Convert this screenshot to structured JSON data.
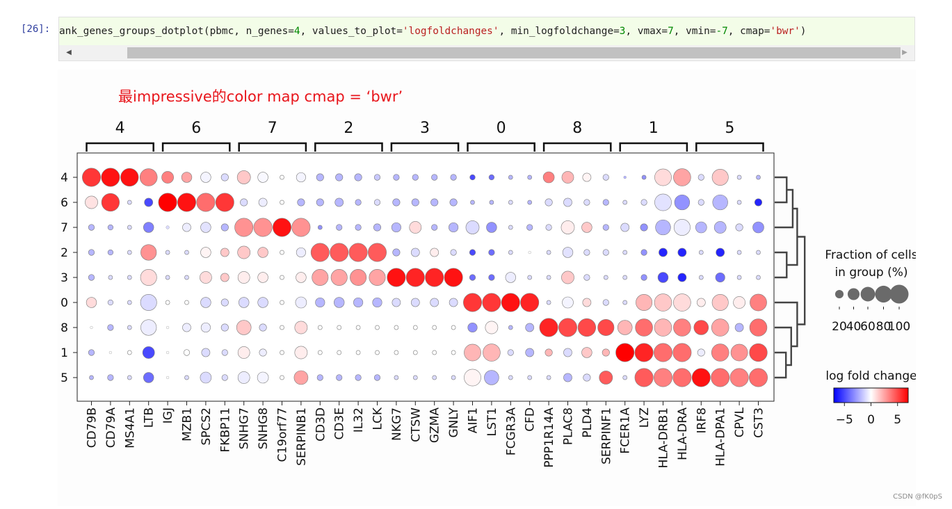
{
  "cell": {
    "prompt": "[26]:",
    "code_parts": [
      {
        "t": "ank_genes_groups_dotplot(pbmc, n_genes=",
        "c": ""
      },
      {
        "t": "4",
        "c": "n"
      },
      {
        "t": ", values_to_plot=",
        "c": ""
      },
      {
        "t": "'logfoldchanges'",
        "c": "s"
      },
      {
        "t": ", min_logfoldchange=",
        "c": ""
      },
      {
        "t": "3",
        "c": "n"
      },
      {
        "t": ", vmax=",
        "c": ""
      },
      {
        "t": "7",
        "c": "n"
      },
      {
        "t": ", vmin=",
        "c": ""
      },
      {
        "t": "-7",
        "c": "n"
      },
      {
        "t": ", cmap=",
        "c": ""
      },
      {
        "t": "'bwr'",
        "c": "s"
      },
      {
        "t": ")",
        "c": ""
      }
    ],
    "scroll_left": "◀",
    "scroll_right": "▶"
  },
  "annotation": "最impressive的color map  cmap = ‘bwr’",
  "watermark": "CSDN @fK0pS",
  "colors": {
    "blue": "#0000ff",
    "white": "#ffffff",
    "red": "#ff0000",
    "annotation": "#e8151b"
  },
  "chart_data": {
    "type": "dotplot",
    "title": "",
    "groups": [
      {
        "label": "4",
        "genes": [
          "CD79B",
          "CD79A",
          "MS4A1",
          "LTB"
        ]
      },
      {
        "label": "6",
        "genes": [
          "IGJ",
          "MZB1",
          "SPCS2",
          "FKBP11"
        ]
      },
      {
        "label": "7",
        "genes": [
          "SNHG7",
          "SNHG8",
          "C19orf77",
          "SERPINB1"
        ]
      },
      {
        "label": "2",
        "genes": [
          "CD3D",
          "CD3E",
          "IL32",
          "LCK"
        ]
      },
      {
        "label": "3",
        "genes": [
          "NKG7",
          "CTSW",
          "GZMA",
          "GNLY"
        ]
      },
      {
        "label": "0",
        "genes": [
          "AIF1",
          "LST1",
          "FCGR3A",
          "CFD"
        ]
      },
      {
        "label": "8",
        "genes": [
          "PPP1R14A",
          "PLAC8",
          "PLD4",
          "SERPINF1"
        ]
      },
      {
        "label": "1",
        "genes": [
          "FCER1A",
          "LYZ",
          "HLA-DRB1",
          "HLA-DRA"
        ]
      },
      {
        "label": "5",
        "genes": [
          "IRF8",
          "HLA-DPA1",
          "CPVL",
          "CST3"
        ]
      }
    ],
    "rows": [
      "4",
      "6",
      "7",
      "2",
      "3",
      "0",
      "8",
      "1",
      "5"
    ],
    "genes": [
      "CD79B",
      "CD79A",
      "MS4A1",
      "LTB",
      "IGJ",
      "MZB1",
      "SPCS2",
      "FKBP11",
      "SNHG7",
      "SNHG8",
      "C19orf77",
      "SERPINB1",
      "CD3D",
      "CD3E",
      "IL32",
      "LCK",
      "NKG7",
      "CTSW",
      "GZMA",
      "GNLY",
      "AIF1",
      "LST1",
      "FCGR3A",
      "CFD",
      "PPP1R14A",
      "PLAC8",
      "PLD4",
      "SERPINF1",
      "FCER1A",
      "LYZ",
      "HLA-DRB1",
      "HLA-DRA",
      "IRF8",
      "HLA-DPA1",
      "CPVL",
      "CST3"
    ],
    "fraction_pct": [
      [
        95,
        95,
        90,
        85,
        40,
        30,
        30,
        15,
        50,
        30,
        5,
        25,
        15,
        15,
        15,
        10,
        10,
        10,
        10,
        10,
        8,
        8,
        5,
        5,
        35,
        40,
        20,
        10,
        2,
        5,
        80,
        85,
        10,
        75,
        5,
        5
      ],
      [
        45,
        90,
        5,
        20,
        95,
        95,
        95,
        95,
        15,
        20,
        5,
        15,
        15,
        20,
        10,
        10,
        15,
        15,
        15,
        15,
        5,
        5,
        5,
        5,
        15,
        20,
        10,
        10,
        5,
        10,
        80,
        65,
        10,
        65,
        5,
        15
      ],
      [
        10,
        8,
        5,
        30,
        3,
        20,
        30,
        15,
        95,
        95,
        95,
        95,
        5,
        10,
        10,
        15,
        25,
        40,
        10,
        25,
        50,
        30,
        5,
        10,
        10,
        50,
        30,
        10,
        20,
        15,
        65,
        75,
        35,
        40,
        15,
        35
      ],
      [
        10,
        8,
        5,
        70,
        5,
        5,
        30,
        20,
        45,
        30,
        5,
        25,
        95,
        95,
        95,
        95,
        15,
        20,
        20,
        10,
        10,
        10,
        5,
        2,
        5,
        30,
        10,
        10,
        5,
        10,
        20,
        20,
        5,
        20,
        5,
        5
      ],
      [
        10,
        5,
        5,
        75,
        5,
        5,
        40,
        20,
        40,
        30,
        5,
        30,
        75,
        75,
        75,
        75,
        95,
        95,
        95,
        95,
        10,
        10,
        30,
        5,
        5,
        45,
        10,
        5,
        5,
        10,
        30,
        20,
        5,
        25,
        5,
        5
      ],
      [
        30,
        8,
        5,
        75,
        5,
        5,
        30,
        15,
        30,
        30,
        5,
        35,
        25,
        30,
        25,
        25,
        20,
        20,
        20,
        20,
        95,
        95,
        95,
        95,
        5,
        35,
        20,
        10,
        5,
        75,
        85,
        85,
        20,
        75,
        40,
        80
      ],
      [
        2,
        10,
        5,
        70,
        2,
        20,
        25,
        15,
        60,
        15,
        5,
        45,
        5,
        5,
        5,
        5,
        5,
        5,
        5,
        5,
        25,
        45,
        5,
        20,
        95,
        95,
        90,
        75,
        60,
        85,
        85,
        85,
        60,
        85,
        20,
        85
      ],
      [
        10,
        2,
        5,
        40,
        2,
        10,
        20,
        10,
        40,
        15,
        5,
        45,
        5,
        5,
        5,
        5,
        5,
        5,
        5,
        5,
        80,
        85,
        10,
        20,
        15,
        20,
        30,
        15,
        95,
        95,
        95,
        95,
        15,
        85,
        80,
        90
      ],
      [
        5,
        10,
        5,
        30,
        2,
        5,
        35,
        10,
        40,
        35,
        5,
        55,
        10,
        10,
        10,
        10,
        5,
        5,
        5,
        5,
        80,
        60,
        5,
        5,
        5,
        20,
        15,
        50,
        5,
        95,
        95,
        95,
        95,
        95,
        95,
        95
      ]
    ],
    "logfoldchange": [
      [
        5.5,
        6.5,
        6.5,
        3.5,
        3.5,
        2.5,
        -0.3,
        -1,
        1.5,
        -0.2,
        0,
        -0.3,
        -2,
        -2,
        -2,
        -1.5,
        -2,
        -2,
        -2,
        -2,
        -5,
        -4,
        -2,
        -2,
        3.5,
        2,
        0.3,
        -1,
        -2,
        -3,
        1,
        2.5,
        -1,
        1.5,
        -1,
        -2
      ],
      [
        0.8,
        5.5,
        -1,
        -5,
        7,
        6.5,
        4,
        5.5,
        -1,
        -0.5,
        0,
        -2,
        -2,
        -2,
        -2,
        -1,
        -2,
        -2,
        -2,
        -2,
        -2,
        -2,
        -1,
        -2,
        -1,
        -1,
        -1,
        -2,
        -1,
        -1,
        -0.8,
        -3,
        -1,
        -2,
        -1,
        -6
      ],
      [
        -2,
        -2,
        -1,
        -3.5,
        -1,
        -0.5,
        -0.8,
        -2,
        3,
        3,
        6.5,
        3,
        -3,
        -2,
        -2,
        -2,
        -2,
        1,
        -2,
        -2,
        -1,
        -3,
        -1,
        -2,
        -1,
        0.5,
        1.5,
        -2,
        -1,
        -3,
        -2,
        -0.5,
        -2,
        -2,
        -1,
        -3
      ],
      [
        -2,
        -2,
        -1,
        3,
        -1,
        -1,
        0.3,
        1.5,
        1.5,
        1.5,
        0,
        -0.5,
        4.5,
        4.5,
        4.5,
        4.5,
        -2,
        -1,
        0.5,
        -1,
        -5,
        -4,
        -1,
        0,
        -1,
        -0.8,
        -1,
        -1,
        -1,
        -3,
        -6,
        -6,
        -1,
        -6,
        -1,
        -1
      ],
      [
        -2,
        -1,
        -1,
        1,
        -1,
        -1,
        1,
        1.5,
        0.5,
        0.5,
        0,
        0.5,
        2.5,
        2.5,
        3,
        2.5,
        6.5,
        6,
        6,
        6.5,
        -4,
        -4,
        -0.5,
        -1,
        -1,
        1.5,
        -1,
        -1,
        -1,
        -3,
        -5,
        -6,
        -1,
        -4,
        -1,
        -1
      ],
      [
        1,
        -1,
        -1,
        -1,
        0,
        0,
        -1,
        -1,
        -1,
        -1,
        0,
        -0.5,
        -2,
        -2,
        -2,
        -2,
        -1,
        -1,
        -1,
        -1,
        5.5,
        5.5,
        6.5,
        6,
        -1,
        -0.3,
        1,
        -1,
        -1,
        2,
        1.5,
        1,
        0.5,
        1.5,
        0.5,
        3.5
      ],
      [
        0,
        -2,
        -1,
        -0.5,
        0,
        -0.5,
        -0.5,
        -1,
        1.5,
        -1,
        0,
        1,
        0,
        0,
        0,
        0,
        0,
        0,
        0,
        0,
        -3,
        0.3,
        -2,
        -2,
        6,
        5,
        5,
        5,
        2,
        4,
        2,
        3.5,
        5,
        2.5,
        -2,
        4
      ],
      [
        -2,
        0,
        0,
        -5,
        0,
        0,
        -1,
        -1,
        0.5,
        -0.5,
        0,
        0.5,
        0,
        0,
        0,
        0,
        0,
        0,
        0,
        0,
        2,
        2,
        -1,
        -2,
        2,
        -1,
        1.5,
        2,
        7,
        6,
        4,
        4,
        -0.5,
        3.5,
        3,
        5
      ],
      [
        -2,
        -2,
        -1,
        -4,
        0,
        -1,
        -1,
        -1,
        -0.5,
        -0.3,
        0,
        2.5,
        -2,
        -2,
        -2,
        -2,
        -1,
        -1,
        -1,
        -1,
        0.3,
        -2,
        -1,
        -1,
        -1,
        -2,
        -1,
        4.5,
        -1,
        4.5,
        3.5,
        4,
        6.5,
        4,
        3.5,
        4
      ]
    ],
    "vmin": -7,
    "vmax": 7,
    "size_legend": {
      "title_line1": "Fraction of cells",
      "title_line2": "in group (%)",
      "values": [
        20,
        40,
        60,
        80,
        100
      ],
      "labels": [
        "20",
        "40",
        "60",
        "80",
        "100"
      ]
    },
    "color_legend": {
      "title": "log fold change",
      "ticks": [
        -5,
        0,
        5
      ],
      "tick_labels": [
        "−5",
        "0",
        "5"
      ]
    },
    "dendrogram": true,
    "cmap": "bwr"
  }
}
